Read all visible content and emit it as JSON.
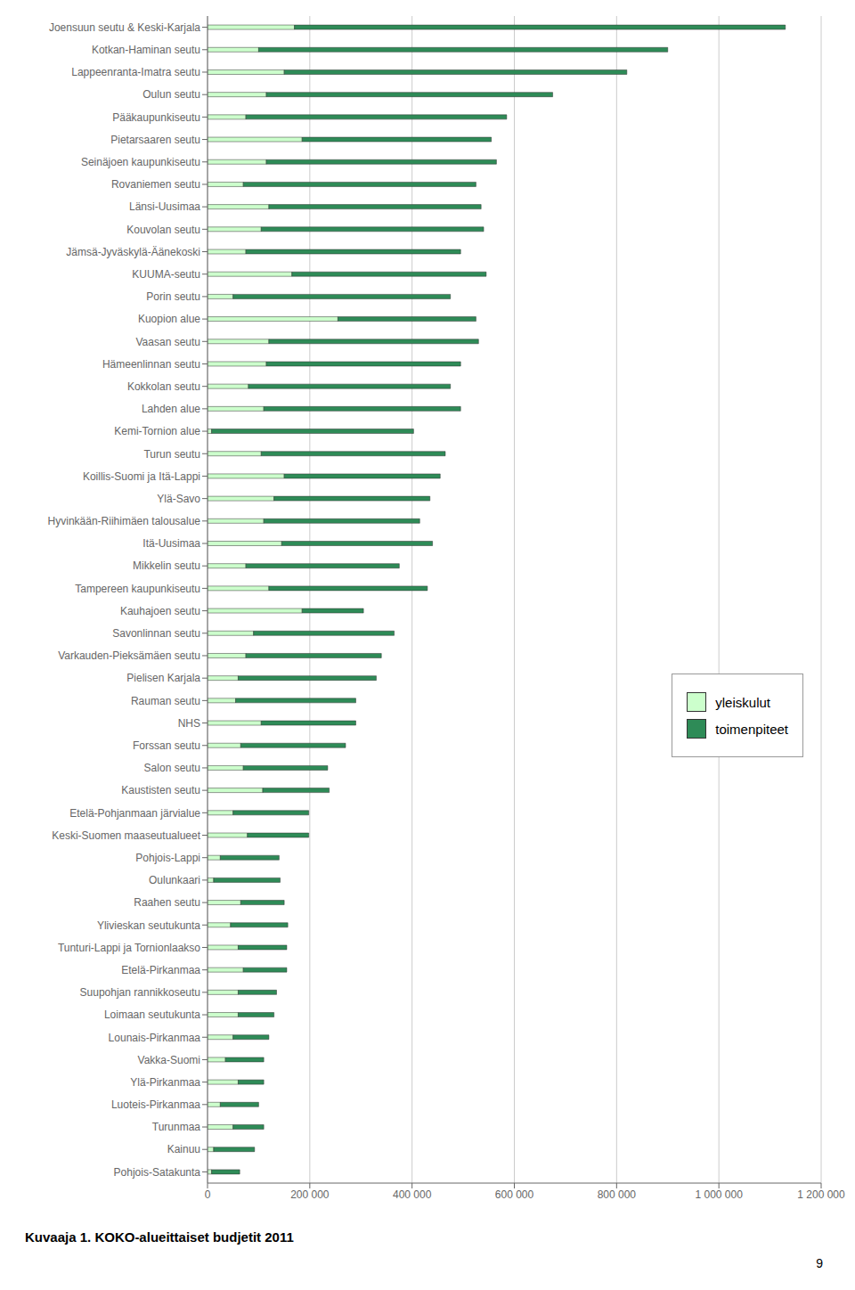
{
  "chart_data": {
    "type": "bar",
    "title": "Kuvaaja 1. KOKO-alueittaiset budjetit 2011",
    "orientation": "horizontal",
    "stacked": true,
    "grid": true,
    "legend": "lower right",
    "annotations": [
      "9"
    ],
    "categories": [
      "Joensuun seutu & Keski-Karjala",
      "Kotkan-Haminan seutu",
      "Lappeenranta-Imatra seutu",
      "Oulun seutu",
      "Pääkaupunkiseutu",
      "Pietarsaaren seutu",
      "Seinäjoen kaupunkiseutu",
      "Rovaniemen seutu",
      "Länsi-Uusimaa",
      "Kouvolan seutu",
      "Jämsä-Jyväskylä-Äänekoski",
      "KUUMA-seutu",
      "Porin seutu",
      "Kuopion alue",
      "Vaasan seutu",
      "Hämeenlinnan seutu",
      "Kokkolan seutu",
      "Lahden alue",
      "Kemi-Tornion alue",
      "Turun seutu",
      "Koillis-Suomi ja Itä-Lappi",
      "Ylä-Savo",
      "Hyvinkään-Riihimäen talousalue",
      "Itä-Uusimaa",
      "Mikkelin seutu",
      "Tampereen kaupunkiseutu",
      "Kauhajoen seutu",
      "Savonlinnan seutu",
      "Varkauden-Pieksämäen seutu",
      "Pielisen Karjala",
      "Rauman seutu",
      "NHS",
      "Forssan seutu",
      "Salon seutu",
      "Kaustisten seutu",
      "Etelä-Pohjanmaan järvialue",
      "Keski-Suomen maaseutualueet",
      "Pohjois-Lappi",
      "Oulunkaari",
      "Raahen seutu",
      "Ylivieskan seutukunta",
      "Tunturi-Lappi ja Tornionlaakso",
      "Etelä-Pirkanmaa",
      "Suupohjan rannikkoseutu",
      "Loimaan seutukunta",
      "Lounais-Pirkanmaa",
      "Vakka-Suomi",
      "Ylä-Pirkanmaa",
      "Luoteis-Pirkanmaa",
      "Turunmaa",
      "Kainuu",
      "Pohjois-Satakunta"
    ],
    "series": [
      {
        "name": "yleiskulut",
        "color": "#ccffcc",
        "values": [
          170000,
          100000,
          150000,
          115000,
          75000,
          185000,
          115000,
          70000,
          120000,
          105000,
          75000,
          165000,
          50000,
          255000,
          120000,
          115000,
          80000,
          110000,
          8000,
          105000,
          150000,
          130000,
          110000,
          145000,
          75000,
          120000,
          185000,
          90000,
          75000,
          60000,
          55000,
          105000,
          65000,
          70000,
          108000,
          50000,
          78000,
          25000,
          12000,
          65000,
          45000,
          60000,
          70000,
          60000,
          60000,
          50000,
          35000,
          60000,
          25000,
          50000,
          12000,
          8000
        ]
      },
      {
        "name": "toimenpiteet",
        "color": "#2e8b57",
        "values": [
          960000,
          800000,
          670000,
          560000,
          510000,
          370000,
          450000,
          455000,
          415000,
          435000,
          420000,
          380000,
          425000,
          270000,
          410000,
          380000,
          395000,
          385000,
          395000,
          360000,
          305000,
          305000,
          305000,
          295000,
          300000,
          310000,
          120000,
          275000,
          265000,
          270000,
          235000,
          185000,
          205000,
          165000,
          130000,
          148000,
          120000,
          115000,
          130000,
          85000,
          112000,
          95000,
          85000,
          75000,
          70000,
          70000,
          75000,
          50000,
          75000,
          60000,
          80000,
          55000
        ]
      }
    ],
    "xlim": [
      0,
      1200000
    ],
    "xticks": [
      0,
      {
        "value": 200000,
        "label": "200 000"
      },
      {
        "value": 400000,
        "label": "400 000"
      },
      {
        "value": 600000,
        "label": "600 000"
      },
      {
        "value": 800000,
        "label": "800 000"
      },
      {
        "value": 1000000,
        "label": "1 000 000"
      },
      {
        "value": 1200000,
        "label": "1 200 000"
      }
    ]
  }
}
